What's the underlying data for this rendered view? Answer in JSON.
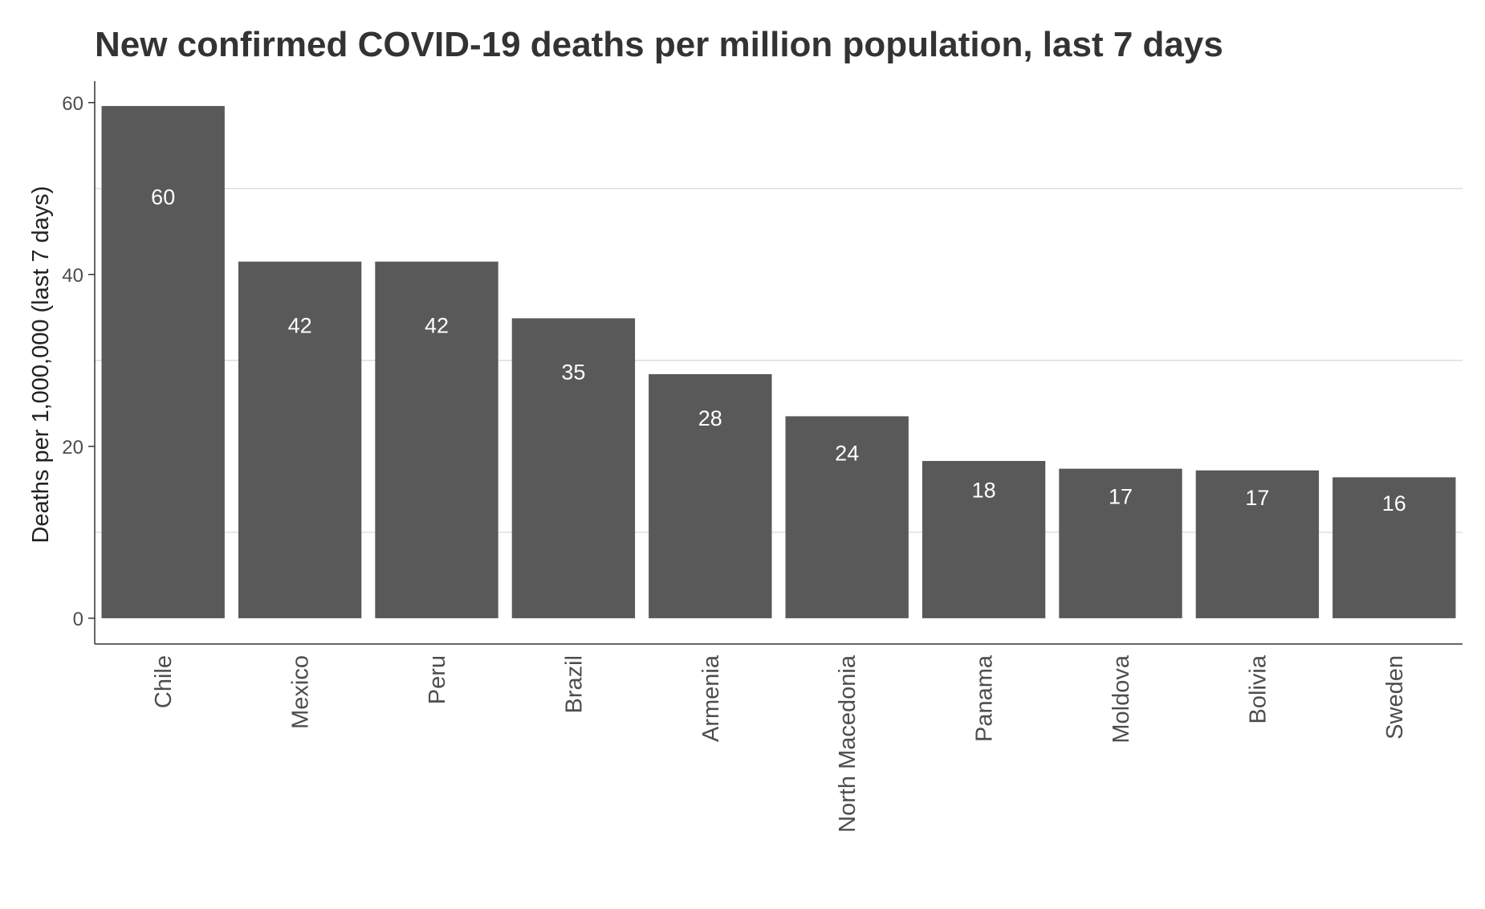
{
  "chart_data": {
    "type": "bar",
    "title": "New confirmed COVID-19 deaths per million population, last 7 days",
    "xlabel": "",
    "ylabel": "Deaths per 1,000,000 (last 7 days)",
    "categories": [
      "Chile",
      "Mexico",
      "Peru",
      "Brazil",
      "Armenia",
      "North Macedonia",
      "Panama",
      "Moldova",
      "Bolivia",
      "Sweden"
    ],
    "values": [
      59.6,
      41.5,
      41.5,
      34.9,
      28.4,
      23.5,
      18.3,
      17.4,
      17.2,
      16.4
    ],
    "data_labels": [
      "60",
      "42",
      "42",
      "35",
      "28",
      "24",
      "18",
      "17",
      "17",
      "16"
    ],
    "ylim": [
      -3,
      62.5
    ],
    "yticks": [
      0,
      20,
      40,
      60
    ],
    "ytick_labels": [
      "0",
      "20",
      "40",
      "60"
    ],
    "minor_gridlines": [
      10,
      30,
      50
    ],
    "grid": "horizontal minor only",
    "legend": "none",
    "colors": {
      "bar": "#595959",
      "grid": "#d9d9d9",
      "axis": "#333333",
      "title": "#333333",
      "data_label": "#ffffff"
    }
  }
}
